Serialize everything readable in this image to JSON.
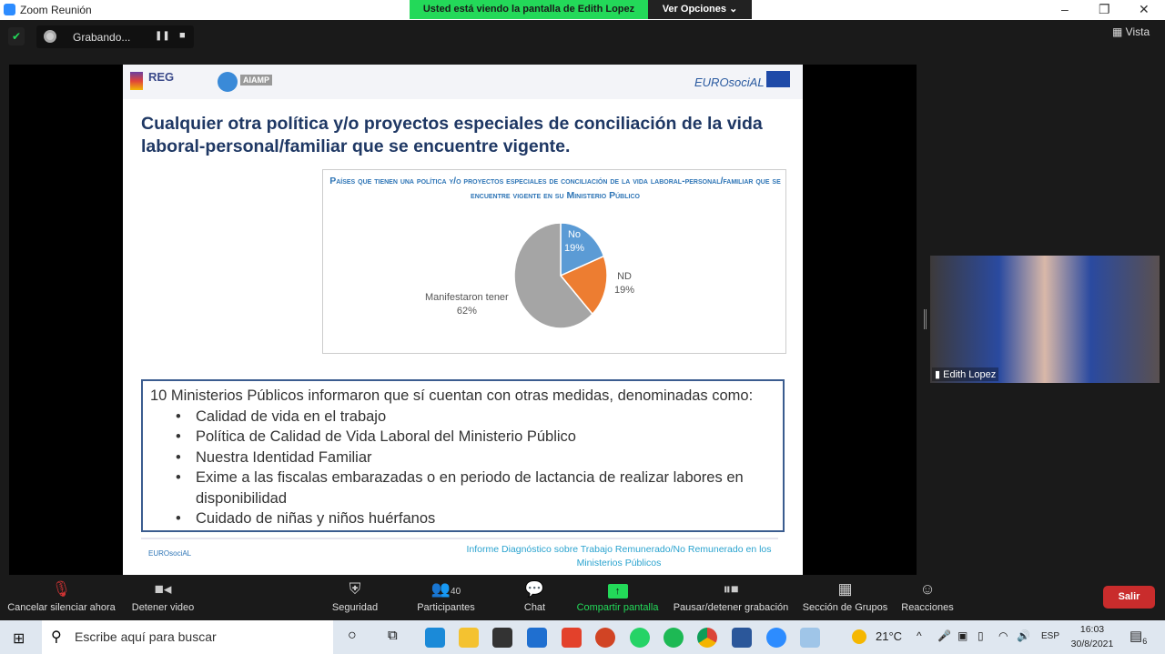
{
  "window": {
    "title": "Zoom Reunión",
    "banner": "Usted está viendo la pantalla de Edith Lopez",
    "options": "Ver Opciones ⌄",
    "minimize": "–",
    "restore": "❐",
    "close": "✕"
  },
  "recording": {
    "label": "Grabando...",
    "pause": "❚❚",
    "stop": "■"
  },
  "view": {
    "label": "▦ Vista"
  },
  "slide": {
    "logos": {
      "reg": "REG",
      "aiamp": "AIAMP",
      "eurosocial": "EUROsociAL"
    },
    "title": "Cualquier otra política y/o proyectos especiales de conciliación de la vida laboral-personal/familiar que se encuentre vigente.",
    "intro": "10 Ministerios Públicos informaron que sí cuentan con otras medidas, denominadas como:",
    "items": [
      "Calidad de vida en el trabajo",
      "Política de Calidad de Vida Laboral del Ministerio Público",
      "Nuestra Identidad Familiar",
      "Exime a las fiscalas embarazadas o en periodo de lactancia de realizar labores en disponibilidad",
      "Cuidado de niñas y niños huérfanos"
    ],
    "footer_left": "EUROsociAL",
    "footer_right": "Informe Diagnóstico sobre Trabajo Remunerado/No Remunerado en los Ministerios Públicos"
  },
  "chart_data": {
    "type": "pie",
    "title": "Países que tienen una política y/o proyectos especiales de conciliación de la vida laboral-personal/familiar que se encuentre vigente en su Ministerio Público",
    "slices": [
      {
        "label": "No",
        "value": 19,
        "pct": "19%",
        "color": "#5b9bd5"
      },
      {
        "label": "ND",
        "value": 19,
        "pct": "19%",
        "color": "#ed7d31"
      },
      {
        "label": "Manifestaron tener",
        "value": 62,
        "pct": "62%",
        "color": "#a5a5a5"
      }
    ]
  },
  "participant": {
    "name": "Edith Lopez"
  },
  "toolbar": {
    "mute": "Cancelar silenciar ahora",
    "video": "Detener video",
    "security": "Seguridad",
    "participants": "Participantes",
    "participants_count": "40",
    "chat": "Chat",
    "share": "Compartir pantalla",
    "record": "Pausar/detener grabación",
    "groups": "Sección de Grupos",
    "reactions": "Reacciones",
    "leave": "Salir"
  },
  "taskbar": {
    "search_placeholder": "Escribe aquí para buscar",
    "temp": "21°C",
    "lang": "ESP",
    "time": "16:03",
    "date": "30/8/2021",
    "notifications": "6"
  }
}
